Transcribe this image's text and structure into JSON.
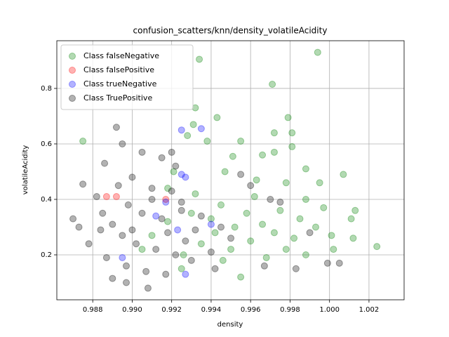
{
  "chart_data": {
    "type": "scatter",
    "title": "confusion_scatters/knn/density_volatileAcidity",
    "x_label": "density",
    "y_label": "volatileAcidity",
    "xlim": [
      0.98618,
      1.00378
    ],
    "ylim": [
      0.038,
      0.972
    ],
    "xticks": [
      0.988,
      {
        "value": 0.99,
        "label": "0.990"
      },
      0.992,
      0.994,
      0.996,
      0.998,
      {
        "value": 1,
        "label": "1.000"
      },
      1.002
    ],
    "yticks": [
      0.2,
      0.4,
      0.6,
      0.8
    ],
    "grid": true,
    "legend_loc": "upper left",
    "series": [
      {
        "name": "Class falseNegative",
        "color": "#008000",
        "x": [
          0.9875,
          0.9994,
          0.9934,
          0.9971,
          0.9979,
          0.9981,
          0.9972,
          0.9943,
          0.9932,
          0.9931,
          0.9955,
          0.9966,
          0.9972,
          0.9981,
          0.9988,
          0.9951,
          0.9928,
          0.9938,
          1.0007,
          1.0024,
          1.0013,
          1.0012,
          1.0011,
          0.9995,
          0.9978,
          0.9963,
          0.9947,
          0.9921,
          0.9918,
          0.9932,
          0.9945,
          0.9958,
          0.9966,
          0.9972,
          0.9985,
          0.9993,
          1.0001,
          0.996,
          0.995,
          0.9942,
          0.9935,
          0.9926,
          0.9918,
          0.991,
          0.9905,
          0.9955,
          0.9968,
          0.9978,
          0.9988,
          0.9997,
          0.9952,
          0.9962,
          0.994,
          0.993,
          0.9975,
          0.9982,
          0.9946,
          0.9925,
          0.9988,
          1.0002
        ],
        "y": [
          0.61,
          0.93,
          0.905,
          0.815,
          0.695,
          0.64,
          0.64,
          0.695,
          0.73,
          0.67,
          0.61,
          0.56,
          0.57,
          0.59,
          0.51,
          0.555,
          0.63,
          0.61,
          0.49,
          0.23,
          0.36,
          0.26,
          0.33,
          0.46,
          0.46,
          0.47,
          0.5,
          0.5,
          0.44,
          0.42,
          0.38,
          0.35,
          0.31,
          0.28,
          0.33,
          0.3,
          0.27,
          0.25,
          0.22,
          0.28,
          0.24,
          0.2,
          0.32,
          0.27,
          0.22,
          0.12,
          0.19,
          0.22,
          0.4,
          0.37,
          0.3,
          0.41,
          0.33,
          0.35,
          0.36,
          0.26,
          0.18,
          0.15,
          0.2,
          0.22
        ]
      },
      {
        "name": "Class falsePositive",
        "color": "#ff0000",
        "x": [
          0.9887,
          0.9892,
          0.9917
        ],
        "y": [
          0.41,
          0.41,
          0.4
        ]
      },
      {
        "name": "Class trueNegative",
        "color": "#0000ff",
        "x": [
          0.9925,
          0.9935,
          0.9925,
          0.9927,
          0.9927,
          0.9917,
          0.9912,
          0.9923,
          0.994,
          0.9895
        ],
        "y": [
          0.65,
          0.655,
          0.49,
          0.48,
          0.13,
          0.39,
          0.34,
          0.29,
          0.31,
          0.19
        ]
      },
      {
        "name": "Class TruePositive",
        "color": "#000000",
        "x": [
          0.9892,
          0.9875,
          0.9873,
          0.987,
          0.9878,
          0.9886,
          0.9882,
          0.9884,
          0.9908,
          0.9897,
          0.989,
          0.9895,
          0.9905,
          0.9915,
          0.992,
          0.99,
          0.9893,
          0.991,
          0.992,
          0.9898,
          0.9905,
          0.9915,
          0.9925,
          0.9935,
          0.989,
          0.9895,
          0.9902,
          0.9912,
          0.9922,
          0.993,
          0.994,
          0.9887,
          0.9897,
          0.9907,
          0.9917,
          0.9927,
          0.9945,
          0.995,
          0.9955,
          0.996,
          0.997,
          0.9975,
          0.9983,
          0.9967,
          0.9999,
          1.0005,
          0.999,
          0.9942,
          0.9932,
          0.991,
          0.9885,
          0.99,
          0.9918,
          0.9922,
          0.9925
        ],
        "y": [
          0.66,
          0.455,
          0.3,
          0.33,
          0.24,
          0.53,
          0.41,
          0.29,
          0.08,
          0.1,
          0.115,
          0.6,
          0.57,
          0.55,
          0.57,
          0.48,
          0.45,
          0.44,
          0.43,
          0.38,
          0.35,
          0.33,
          0.36,
          0.34,
          0.31,
          0.27,
          0.24,
          0.22,
          0.2,
          0.18,
          0.21,
          0.19,
          0.16,
          0.14,
          0.13,
          0.25,
          0.3,
          0.26,
          0.49,
          0.45,
          0.4,
          0.39,
          0.15,
          0.16,
          0.17,
          0.17,
          0.28,
          0.15,
          0.29,
          0.4,
          0.35,
          0.29,
          0.28,
          0.52,
          0.39
        ]
      }
    ]
  }
}
